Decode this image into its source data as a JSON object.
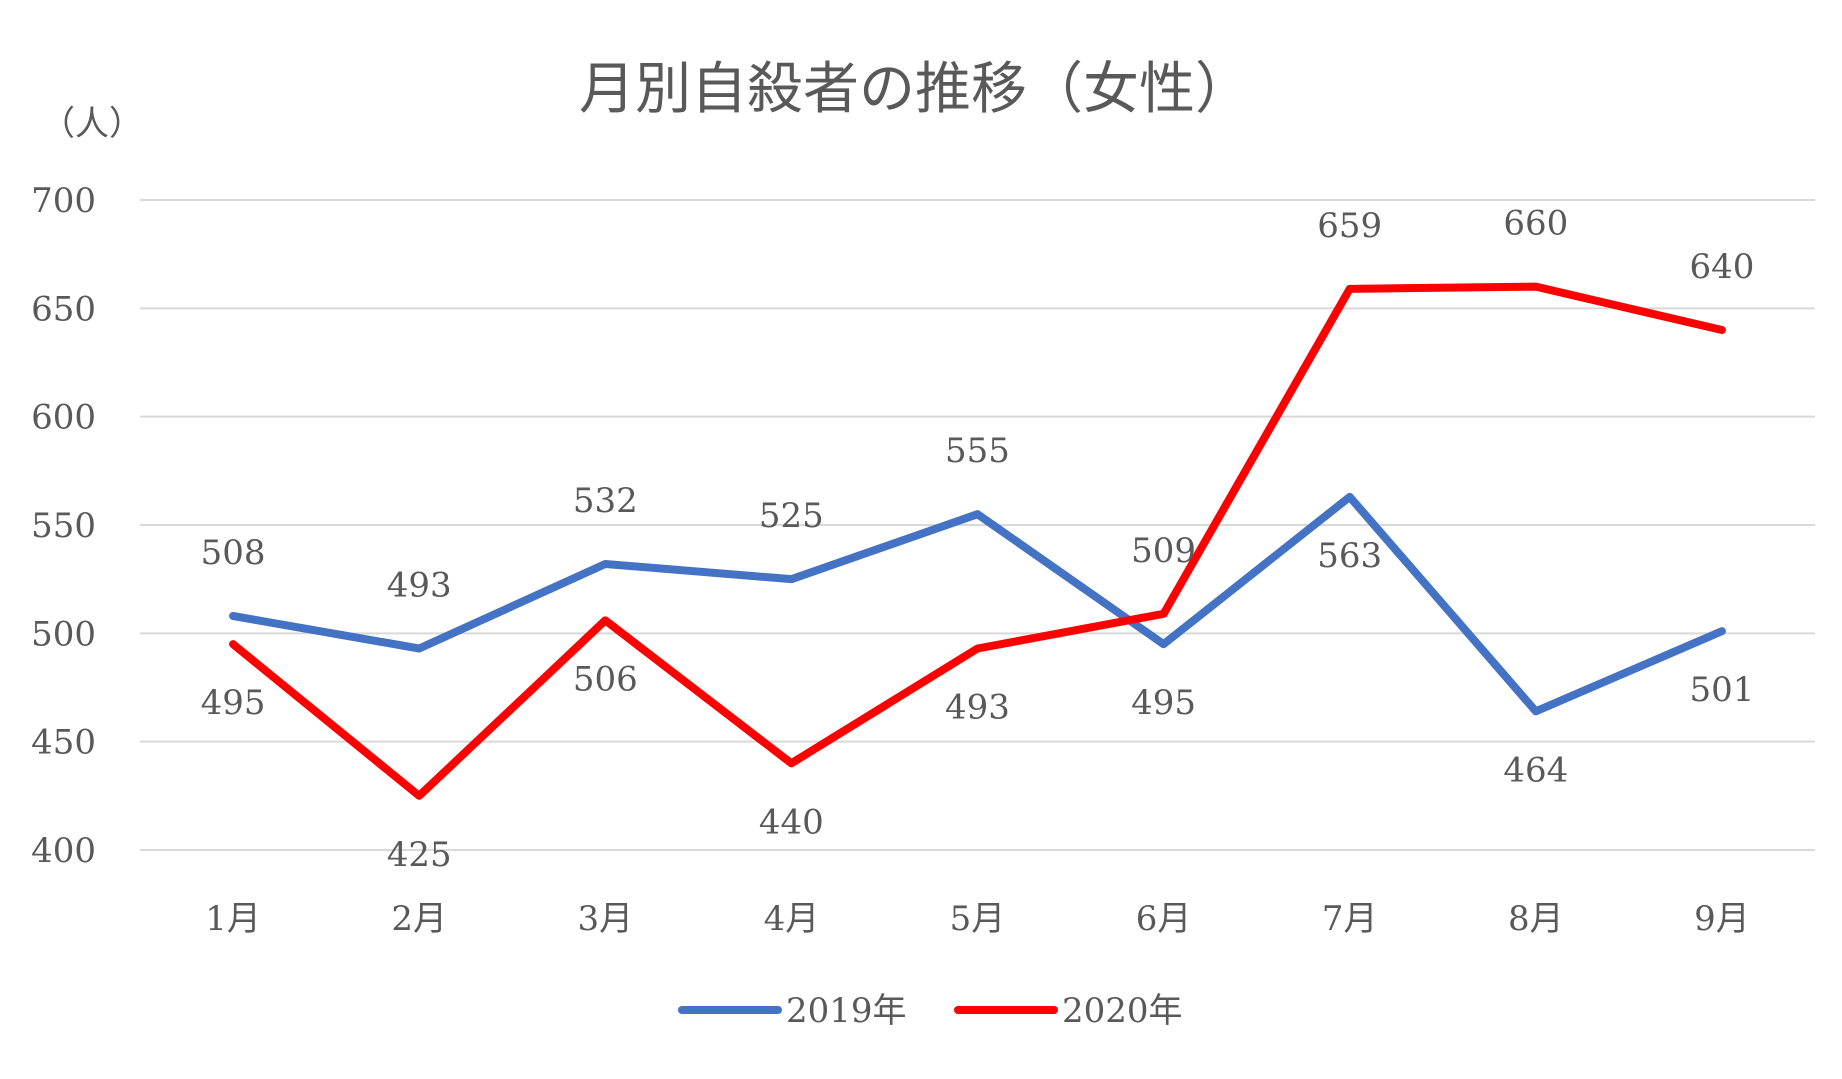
{
  "chart_data": {
    "type": "line",
    "title": "月別自殺者の推移（女性）",
    "ylabel": "（人）",
    "xlabel": "",
    "categories": [
      "1月",
      "2月",
      "3月",
      "4月",
      "5月",
      "6月",
      "7月",
      "8月",
      "9月"
    ],
    "ylim": [
      400,
      700
    ],
    "yticks": [
      400,
      450,
      500,
      550,
      600,
      650,
      700
    ],
    "grid": true,
    "legend_position": "bottom",
    "series": [
      {
        "name": "2019年",
        "color": "#4472c4",
        "values": [
          508,
          493,
          532,
          525,
          555,
          495,
          563,
          464,
          501
        ]
      },
      {
        "name": "2020年",
        "color": "#ff0000",
        "values": [
          495,
          425,
          506,
          440,
          493,
          509,
          659,
          660,
          640
        ]
      }
    ]
  }
}
